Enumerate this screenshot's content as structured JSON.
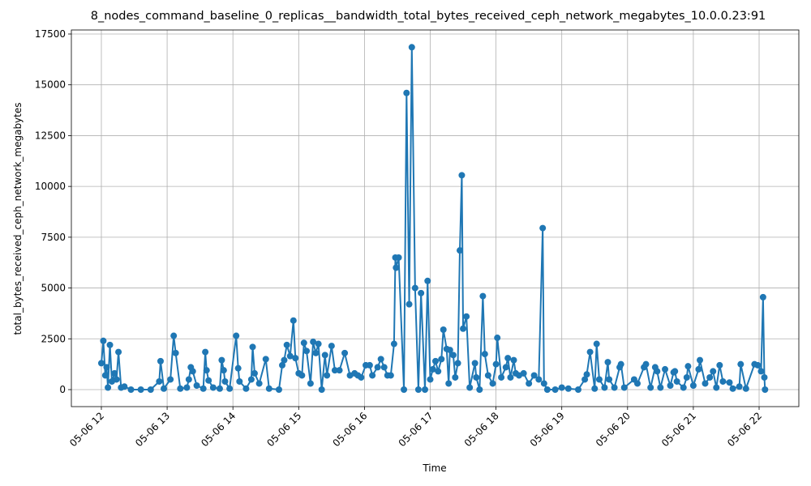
{
  "chart_data": {
    "type": "line",
    "title": "8_nodes_command_baseline_0_replicas__bandwidth_total_bytes_received_ceph_network_megabytes_10.0.0.23:91",
    "x_label": "Time",
    "y_label": "total_bytes_received_ceph_network_megabytes",
    "x": [
      12.0,
      12.03,
      12.06,
      12.08,
      12.1,
      12.13,
      12.16,
      12.2,
      12.23,
      12.26,
      12.3,
      12.35,
      12.45,
      12.6,
      12.75,
      12.88,
      12.9,
      12.95,
      13.05,
      13.1,
      13.13,
      13.2,
      13.3,
      13.33,
      13.36,
      13.39,
      13.45,
      13.55,
      13.58,
      13.6,
      13.63,
      13.7,
      13.8,
      13.83,
      13.86,
      13.88,
      13.95,
      14.05,
      14.08,
      14.1,
      14.2,
      14.28,
      14.3,
      14.33,
      14.4,
      14.5,
      14.55,
      14.7,
      14.75,
      14.78,
      14.82,
      14.87,
      14.92,
      14.95,
      15.0,
      15.05,
      15.08,
      15.12,
      15.18,
      15.22,
      15.26,
      15.3,
      15.35,
      15.4,
      15.43,
      15.5,
      15.55,
      15.62,
      15.7,
      15.78,
      15.85,
      15.9,
      15.95,
      16.02,
      16.08,
      16.12,
      16.2,
      16.25,
      16.3,
      16.35,
      16.4,
      16.45,
      16.47,
      16.48,
      16.52,
      16.6,
      16.64,
      16.68,
      16.72,
      16.77,
      16.82,
      16.86,
      16.92,
      16.96,
      17.0,
      17.04,
      17.08,
      17.12,
      17.17,
      17.2,
      17.25,
      17.28,
      17.3,
      17.35,
      17.38,
      17.42,
      17.45,
      17.48,
      17.5,
      17.55,
      17.6,
      17.68,
      17.7,
      17.75,
      17.8,
      17.83,
      17.88,
      17.95,
      18.0,
      18.02,
      18.08,
      18.15,
      18.18,
      18.22,
      18.27,
      18.3,
      18.35,
      18.42,
      18.5,
      18.58,
      18.65,
      18.71,
      18.73,
      18.78,
      18.9,
      19.0,
      19.1,
      19.25,
      19.35,
      19.38,
      19.43,
      19.5,
      19.53,
      19.57,
      19.65,
      19.7,
      19.72,
      19.8,
      19.88,
      19.9,
      19.95,
      20.1,
      20.15,
      20.25,
      20.28,
      20.35,
      20.42,
      20.45,
      20.5,
      20.57,
      20.65,
      20.7,
      20.72,
      20.75,
      20.85,
      20.9,
      20.92,
      21.0,
      21.08,
      21.1,
      21.18,
      21.25,
      21.3,
      21.35,
      21.4,
      21.45,
      21.55,
      21.6,
      21.7,
      21.72,
      21.8,
      21.93,
      21.98,
      22.03,
      22.06,
      22.08,
      22.09
    ],
    "series": [
      {
        "name": "total_bytes_received_ceph_network_megabytes",
        "color": "#1f77b4",
        "values": [
          1300,
          2400,
          700,
          1100,
          100,
          2200,
          400,
          800,
          500,
          1850,
          100,
          150,
          0,
          0,
          0,
          400,
          1400,
          50,
          500,
          2650,
          1800,
          50,
          100,
          500,
          1100,
          900,
          200,
          50,
          1850,
          950,
          450,
          100,
          50,
          1450,
          950,
          400,
          50,
          2650,
          1050,
          400,
          50,
          500,
          2100,
          800,
          300,
          1500,
          50,
          0,
          1200,
          1450,
          2200,
          1650,
          3400,
          1550,
          800,
          700,
          2300,
          1900,
          300,
          2350,
          1800,
          2250,
          0,
          1700,
          700,
          2150,
          950,
          950,
          1800,
          700,
          800,
          700,
          600,
          1200,
          1200,
          700,
          1100,
          1500,
          1100,
          700,
          700,
          2250,
          6500,
          6000,
          6500,
          0,
          14600,
          4200,
          16850,
          5000,
          0,
          4750,
          0,
          5350,
          500,
          1000,
          1400,
          900,
          1500,
          2950,
          2000,
          300,
          1950,
          1700,
          600,
          1300,
          6850,
          10550,
          3000,
          3600,
          100,
          1300,
          600,
          0,
          4600,
          1750,
          700,
          300,
          1250,
          2550,
          600,
          1100,
          1550,
          600,
          1450,
          800,
          700,
          800,
          300,
          700,
          500,
          7950,
          300,
          0,
          0,
          100,
          50,
          0,
          500,
          750,
          1850,
          50,
          2250,
          500,
          100,
          1350,
          500,
          100,
          1100,
          1250,
          100,
          500,
          300,
          1100,
          1250,
          100,
          1100,
          900,
          100,
          1000,
          200,
          850,
          900,
          400,
          100,
          600,
          1150,
          200,
          1000,
          1450,
          300,
          600,
          900,
          100,
          1200,
          400,
          350,
          50,
          150,
          1250,
          50,
          1250,
          1200,
          900,
          4550,
          600,
          0
        ]
      }
    ],
    "xlim": [
      11.544,
      22.604
    ],
    "ylim": [
      -837,
      17699
    ],
    "xticks": [
      {
        "value": 12,
        "label": "05-06 12"
      },
      {
        "value": 13,
        "label": "05-06 13"
      },
      {
        "value": 14,
        "label": "05-06 14"
      },
      {
        "value": 15,
        "label": "05-06 15"
      },
      {
        "value": 16,
        "label": "05-06 16"
      },
      {
        "value": 17,
        "label": "05-06 17"
      },
      {
        "value": 18,
        "label": "05-06 18"
      },
      {
        "value": 19,
        "label": "05-06 19"
      },
      {
        "value": 20,
        "label": "05-06 20"
      },
      {
        "value": 21,
        "label": "05-06 21"
      },
      {
        "value": 22,
        "label": "05-06 22"
      }
    ],
    "yticks": [
      0,
      2500,
      5000,
      7500,
      10000,
      12500,
      15000,
      17500
    ],
    "grid": true
  }
}
